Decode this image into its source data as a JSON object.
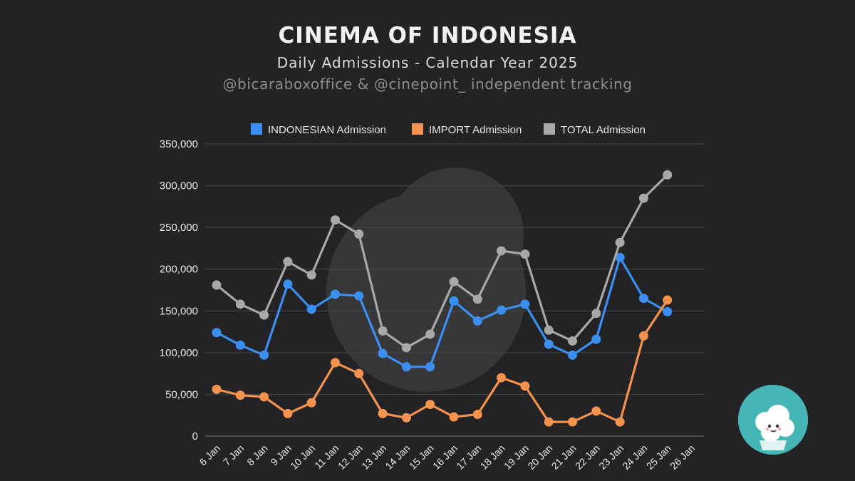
{
  "header": {
    "title": "CINEMA OF INDONESIA",
    "subtitle": "Daily Admissions - Calendar Year 2025",
    "credit": "@bicaraboxoffice & @cinepoint_ independent tracking"
  },
  "logo_icon": "popcorn-mascot-icon",
  "watermark_icon": "cinema-logo-watermark",
  "chart_data": {
    "type": "line",
    "title": "CINEMA OF INDONESIA",
    "subtitle": "Daily Admissions - Calendar Year 2025",
    "xlabel": "",
    "ylabel": "",
    "ylim": [
      0,
      350000
    ],
    "y_ticks": [
      0,
      50000,
      100000,
      150000,
      200000,
      250000,
      300000,
      350000
    ],
    "y_tick_labels": [
      "0",
      "50,000",
      "100,000",
      "150,000",
      "200,000",
      "250,000",
      "300,000",
      "350,000"
    ],
    "grid": true,
    "legend_position": "top",
    "categories": [
      "6 Jan",
      "7 Jan",
      "8 Jan",
      "9 Jan",
      "10 Jan",
      "11 Jan",
      "12 Jan",
      "13 Jan",
      "14 Jan",
      "15 Jan",
      "16 Jan",
      "17 Jan",
      "18 Jan",
      "19 Jan",
      "20 Jan",
      "21 Jan",
      "22 Jan",
      "23 Jan",
      "24 Jan",
      "25 Jan",
      "26 Jan"
    ],
    "series": [
      {
        "name": "INDONESIAN Admission",
        "color": "#3a8ff0",
        "values": [
          124000,
          109000,
          97000,
          182000,
          152000,
          170000,
          168000,
          99000,
          83000,
          83000,
          162000,
          138000,
          151000,
          158000,
          110000,
          97000,
          116000,
          214000,
          165000,
          149000,
          null
        ]
      },
      {
        "name": "IMPORT Admission",
        "color": "#f5924e",
        "values": [
          56000,
          49000,
          47000,
          27000,
          40000,
          88000,
          75000,
          27000,
          22000,
          38000,
          23000,
          26000,
          70000,
          60000,
          17000,
          17000,
          30000,
          17000,
          120000,
          163000,
          null
        ]
      },
      {
        "name": "TOTAL Admission",
        "color": "#a8a8a8",
        "values": [
          181000,
          158000,
          145000,
          209000,
          193000,
          259000,
          242000,
          126000,
          106000,
          122000,
          185000,
          164000,
          222000,
          218000,
          127000,
          114000,
          147000,
          232000,
          285000,
          313000,
          null
        ]
      }
    ]
  }
}
